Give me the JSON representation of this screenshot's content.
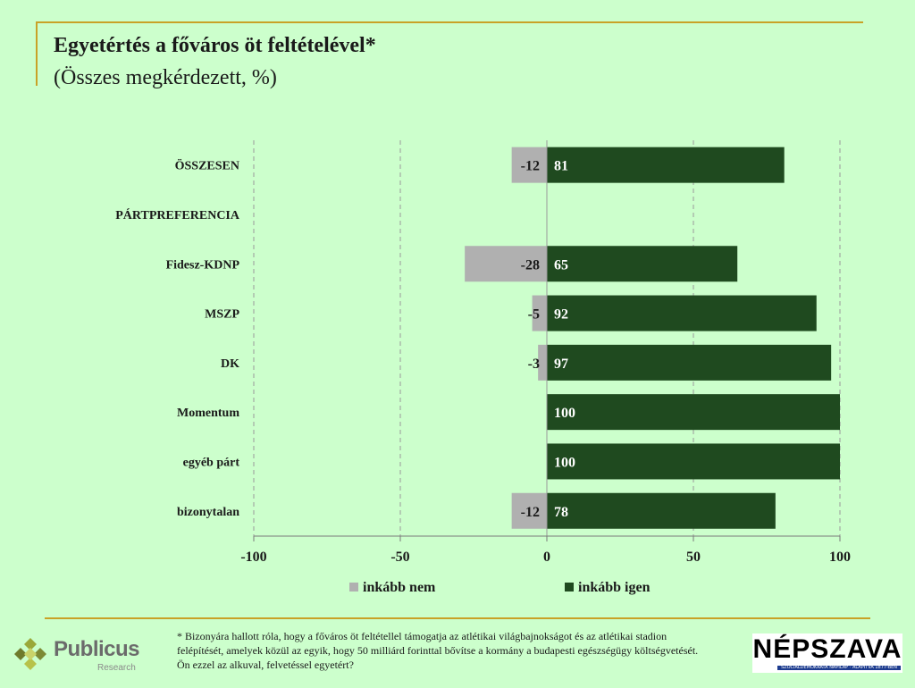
{
  "header": {
    "title": "Egyetértés a főváros öt feltételével*",
    "subtitle": "(Összes megkérdezett, %)"
  },
  "chart_data": {
    "type": "bar",
    "orientation": "horizontal",
    "stacked": "diverging",
    "categories": [
      "ÖSSZESEN",
      "PÁRTPREFERENCIA",
      "Fidesz-KDNP",
      "MSZP",
      "DK",
      "Momentum",
      "egyéb párt",
      "bizonytalan"
    ],
    "series": [
      {
        "name": "inkább nem",
        "color": "#b0b0b0",
        "values": [
          -12,
          null,
          -28,
          -5,
          -3,
          null,
          null,
          -12
        ]
      },
      {
        "name": "inkább igen",
        "color": "#1f4a1f",
        "values": [
          81,
          null,
          65,
          92,
          97,
          100,
          100,
          78
        ]
      }
    ],
    "xlim": [
      -100,
      100
    ],
    "xticks": [
      -100,
      -50,
      0,
      50,
      100
    ],
    "grid": "vertical dashed",
    "legend": "bottom"
  },
  "footnote": "* Bizonyára hallott róla, hogy a főváros öt feltétellel támogatja az atlétikai világbajnokságot és az atlétikai stadion felépítését, amelyek közül az egyik, hogy 50 milliárd forinttal bővítse a kormány a budapesti egészségügy költségvetését. Ön ezzel az alkuval, felvetéssel egyetért?",
  "logos": {
    "left": {
      "name": "Publicus",
      "sub": "Research"
    },
    "right": {
      "name": "NÉPSZAVA",
      "tagline": "SZOCIALDEMOKRATA NAPILAP · ALAPÍTVA 1877-BEN"
    }
  }
}
